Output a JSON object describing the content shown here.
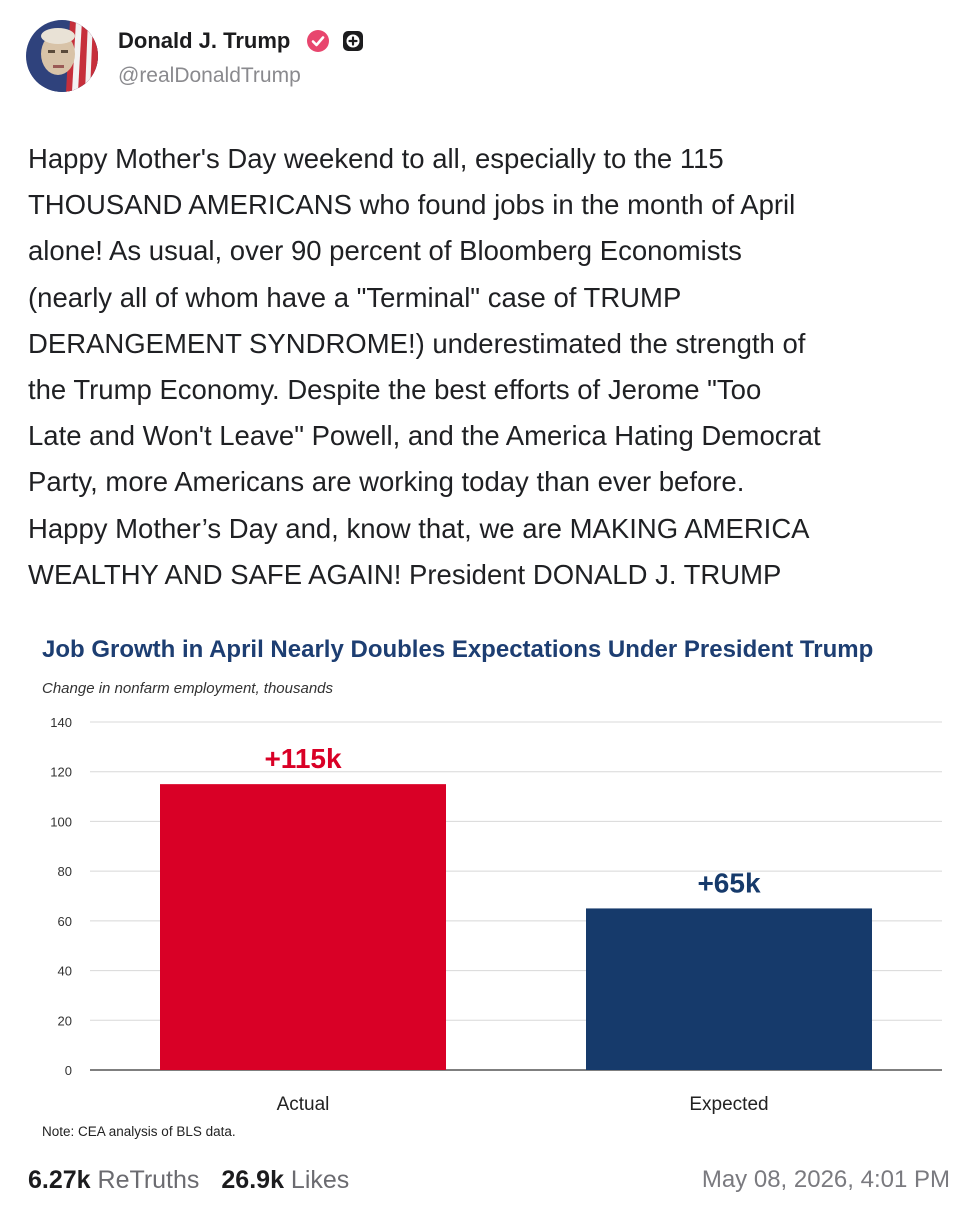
{
  "author": {
    "name": "Donald J. Trump",
    "handle": "@realDonaldTrump",
    "verified_color": "#e8466e"
  },
  "post": {
    "text": "Happy Mother's Day weekend to all, especially to the 115\nTHOUSAND AMERICANS who found jobs in the month of April\nalone! As usual, over 90 percent of Bloomberg Economists\n(nearly all of whom have a \"Terminal\" case of TRUMP\nDERANGEMENT SYNDROME!) underestimated the strength of\nthe Trump Economy. Despite the best efforts of Jerome \"Too\nLate and Won't Leave\" Powell, and the America Hating Democrat\nParty, more Americans are working today than ever before.\nHappy Mother’s Day and, know that, we are MAKING AMERICA\nWEALTHY AND SAFE AGAIN! President DONALD J. TRUMP"
  },
  "chart_data": {
    "type": "bar",
    "title": "Job Growth in April Nearly Doubles Expectations Under President Trump",
    "subtitle": "Change in nonfarm employment, thousands",
    "categories": [
      "Actual",
      "Expected"
    ],
    "values": [
      115,
      65
    ],
    "data_labels": [
      "+115k",
      "+65k"
    ],
    "colors": [
      "#d90026",
      "#163a6b"
    ],
    "label_colors": [
      "#d90026",
      "#163a6b"
    ],
    "ylim": [
      0,
      140
    ],
    "yticks": [
      "0",
      "20",
      "40",
      "60",
      "80",
      "100",
      "120",
      "140"
    ],
    "grid": true,
    "note": "Note: CEA analysis of BLS data."
  },
  "stats": {
    "retruths_count": "6.27k",
    "retruths_label": "ReTruths",
    "likes_count": "26.9k",
    "likes_label": "Likes",
    "timestamp": "May 08, 2026, 4:01 PM"
  }
}
